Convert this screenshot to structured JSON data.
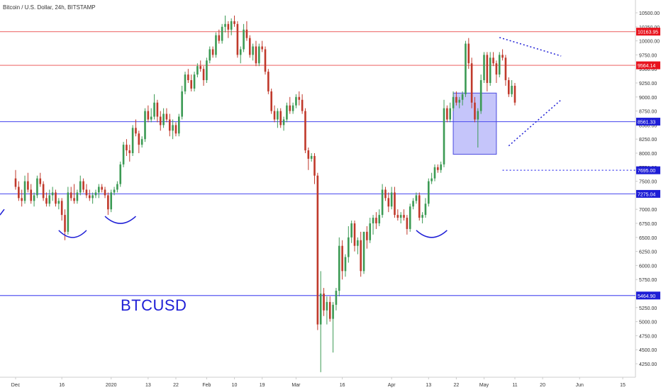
{
  "title": "Bitcoin / U.S. Dollar, 24h, BITSTAMP",
  "label": "BTCUSD",
  "colors": {
    "up": "#3c9a54",
    "down": "#c0392b",
    "red_line": "#f08080",
    "blue_line": "#5a5af0",
    "axis_text": "#333333",
    "axis_line": "#cccccc",
    "badge_red": "#e8141e",
    "badge_blue": "#1e1ed6"
  },
  "chart_data": {
    "type": "candlestick",
    "ylim": [
      4100,
      10650
    ],
    "y_ticks": [
      4250,
      4500,
      4750,
      5000,
      5250,
      5500,
      5750,
      6000,
      6250,
      6500,
      6750,
      7000,
      7250,
      7500,
      7750,
      8000,
      8250,
      8500,
      8750,
      9000,
      9250,
      9500,
      9750,
      10000,
      10250,
      10500
    ],
    "y_tick_labels": [
      "4250.00",
      "4500.00",
      "4750.00",
      "5000.00",
      "5250.00",
      "5500.00",
      "5750.00",
      "6000.00",
      "6250.00",
      "6500.00",
      "6750.00",
      "7000.00",
      "7250.00",
      "7500.00",
      "7750.00",
      "8000.00",
      "8250.00",
      "8500.00",
      "8750.00",
      "9000.00",
      "9250.00",
      "9500.00",
      "9750.00",
      "10000.00",
      "10250.00",
      "10500.00"
    ],
    "x_tick_labels": [
      {
        "label": "Dec",
        "day": 0
      },
      {
        "label": "16",
        "day": 15
      },
      {
        "label": "2020",
        "day": 31
      },
      {
        "label": "13",
        "day": 43
      },
      {
        "label": "22",
        "day": 52
      },
      {
        "label": "Feb",
        "day": 62
      },
      {
        "label": "10",
        "day": 71
      },
      {
        "label": "19",
        "day": 80
      },
      {
        "label": "Mar",
        "day": 91
      },
      {
        "label": "16",
        "day": 106
      },
      {
        "label": "Apr",
        "day": 122
      },
      {
        "label": "13",
        "day": 134
      },
      {
        "label": "22",
        "day": 143
      },
      {
        "label": "May",
        "day": 152
      },
      {
        "label": "11",
        "day": 162
      },
      {
        "label": "20",
        "day": 171
      },
      {
        "label": "Jun",
        "day": 183
      },
      {
        "label": "15",
        "day": 197
      }
    ],
    "horizontal_levels": [
      {
        "value": 10163.95,
        "label": "10163.95",
        "style": "red"
      },
      {
        "value": 9564.14,
        "label": "9564.14",
        "style": "red"
      },
      {
        "value": 8561.33,
        "label": "8561.33",
        "style": "blue"
      },
      {
        "value": 7275.04,
        "label": "7275.04",
        "style": "blue"
      },
      {
        "value": 5464.9,
        "label": "5464.90",
        "style": "blue"
      }
    ],
    "dotted_level": {
      "value": 7695.0,
      "label": "7695.00",
      "start_day": 158
    },
    "box": {
      "day_start": 142,
      "day_end": 156,
      "high": 9070,
      "low": 7980
    },
    "triangle": {
      "upper": [
        {
          "day": 157,
          "price": 10060
        },
        {
          "day": 177,
          "price": 9730
        }
      ],
      "lower": [
        {
          "day": 160,
          "price": 8130
        },
        {
          "day": 177,
          "price": 8950
        }
      ]
    },
    "arcs": [
      {
        "day_start": 14,
        "day_end": 23,
        "price": 6550
      },
      {
        "day_start": 29,
        "day_end": 39,
        "price": 6800
      },
      {
        "day_start": 130,
        "day_end": 140,
        "price": 6550
      }
    ],
    "candles": [
      [
        7550,
        7700,
        7350,
        7400
      ],
      [
        7400,
        7500,
        7150,
        7200
      ],
      [
        7200,
        7350,
        7050,
        7150
      ],
      [
        7150,
        7600,
        7100,
        7500
      ],
      [
        7500,
        7650,
        7300,
        7350
      ],
      [
        7350,
        7450,
        7100,
        7150
      ],
      [
        7150,
        7300,
        7050,
        7250
      ],
      [
        7250,
        7600,
        7200,
        7550
      ],
      [
        7550,
        7650,
        7400,
        7450
      ],
      [
        7450,
        7500,
        7150,
        7200
      ],
      [
        7200,
        7300,
        7050,
        7100
      ],
      [
        7100,
        7350,
        7050,
        7250
      ],
      [
        7250,
        7400,
        7150,
        7300
      ],
      [
        7300,
        7350,
        7050,
        7100
      ],
      [
        7100,
        7200,
        7000,
        7150
      ],
      [
        7150,
        7200,
        6800,
        6900
      ],
      [
        6900,
        7000,
        6450,
        6600
      ],
      [
        6600,
        7400,
        6550,
        7300
      ],
      [
        7300,
        7400,
        7150,
        7200
      ],
      [
        7200,
        7450,
        7100,
        7150
      ],
      [
        7150,
        7350,
        7100,
        7300
      ],
      [
        7300,
        7600,
        7250,
        7500
      ],
      [
        7500,
        7550,
        7300,
        7350
      ],
      [
        7350,
        7450,
        7200,
        7250
      ],
      [
        7250,
        7350,
        7150,
        7200
      ],
      [
        7200,
        7300,
        7100,
        7250
      ],
      [
        7250,
        7350,
        7200,
        7300
      ],
      [
        7300,
        7450,
        7200,
        7400
      ],
      [
        7400,
        7450,
        7300,
        7350
      ],
      [
        7350,
        7400,
        7200,
        7250
      ],
      [
        7250,
        7300,
        6900,
        7000
      ],
      [
        7000,
        7350,
        6950,
        7300
      ],
      [
        7300,
        7400,
        7250,
        7350
      ],
      [
        7350,
        7500,
        7300,
        7450
      ],
      [
        7450,
        7850,
        7400,
        7800
      ],
      [
        7800,
        8200,
        7750,
        8150
      ],
      [
        8150,
        8250,
        7950,
        8050
      ],
      [
        8050,
        8150,
        7850,
        8000
      ],
      [
        8000,
        8500,
        7950,
        8450
      ],
      [
        8450,
        8600,
        8300,
        8350
      ],
      [
        8350,
        8400,
        8000,
        8150
      ],
      [
        8150,
        8300,
        8100,
        8250
      ],
      [
        8250,
        8800,
        8200,
        8750
      ],
      [
        8750,
        8850,
        8550,
        8600
      ],
      [
        8600,
        8800,
        8550,
        8650
      ],
      [
        8650,
        9050,
        8600,
        8900
      ],
      [
        8900,
        8950,
        8550,
        8650
      ],
      [
        8650,
        8750,
        8400,
        8500
      ],
      [
        8500,
        8800,
        8450,
        8700
      ],
      [
        8700,
        8800,
        8550,
        8600
      ],
      [
        8600,
        8700,
        8300,
        8400
      ],
      [
        8400,
        8600,
        8250,
        8500
      ],
      [
        8500,
        8550,
        8300,
        8350
      ],
      [
        8350,
        8700,
        8300,
        8650
      ],
      [
        8650,
        9200,
        8600,
        9100
      ],
      [
        9100,
        9450,
        9050,
        9400
      ],
      [
        9400,
        9500,
        9250,
        9300
      ],
      [
        9300,
        9400,
        9100,
        9150
      ],
      [
        9150,
        9450,
        9100,
        9400
      ],
      [
        9400,
        9600,
        9350,
        9550
      ],
      [
        9550,
        9650,
        9450,
        9500
      ],
      [
        9500,
        9550,
        9200,
        9300
      ],
      [
        9300,
        9700,
        9250,
        9650
      ],
      [
        9650,
        9900,
        9600,
        9850
      ],
      [
        9850,
        9900,
        9700,
        9750
      ],
      [
        9750,
        10150,
        9700,
        10100
      ],
      [
        10100,
        10200,
        9950,
        10000
      ],
      [
        10000,
        10300,
        9950,
        10250
      ],
      [
        10250,
        10450,
        10150,
        10300
      ],
      [
        10300,
        10350,
        10050,
        10200
      ],
      [
        10200,
        10400,
        10100,
        10350
      ],
      [
        10350,
        10450,
        10250,
        10300
      ],
      [
        10300,
        10350,
        9700,
        9750
      ],
      [
        9750,
        9900,
        9600,
        9850
      ],
      [
        9850,
        10300,
        9800,
        10200
      ],
      [
        10200,
        10350,
        10000,
        10050
      ],
      [
        10050,
        10100,
        9700,
        9750
      ],
      [
        9750,
        9950,
        9650,
        9900
      ],
      [
        9900,
        10000,
        9550,
        9600
      ],
      [
        9600,
        9950,
        9550,
        9900
      ],
      [
        9900,
        10000,
        9800,
        9850
      ],
      [
        9850,
        9900,
        9400,
        9450
      ],
      [
        9450,
        9500,
        9050,
        9100
      ],
      [
        9100,
        9150,
        8700,
        8750
      ],
      [
        8750,
        8850,
        8550,
        8600
      ],
      [
        8600,
        8800,
        8450,
        8750
      ],
      [
        8750,
        8800,
        8450,
        8500
      ],
      [
        8500,
        8650,
        8400,
        8600
      ],
      [
        8600,
        8900,
        8550,
        8850
      ],
      [
        8850,
        9000,
        8700,
        8750
      ],
      [
        8750,
        8900,
        8700,
        8850
      ],
      [
        8850,
        9050,
        8800,
        9000
      ],
      [
        9000,
        9100,
        8850,
        8950
      ],
      [
        8950,
        9050,
        8700,
        8750
      ],
      [
        8750,
        8800,
        8000,
        8050
      ],
      [
        8050,
        8100,
        7700,
        7900
      ],
      [
        7900,
        8000,
        7850,
        7950
      ],
      [
        7950,
        8000,
        7450,
        7600
      ],
      [
        7600,
        7650,
        4850,
        4950
      ],
      [
        4950,
        5900,
        4100,
        5500
      ],
      [
        5500,
        5600,
        5100,
        5200
      ],
      [
        5200,
        5450,
        4950,
        5350
      ],
      [
        5350,
        5450,
        5000,
        5050
      ],
      [
        5050,
        5350,
        4450,
        5300
      ],
      [
        5300,
        5600,
        5200,
        5550
      ],
      [
        5550,
        6500,
        5450,
        6350
      ],
      [
        6350,
        6450,
        5750,
        5900
      ],
      [
        5900,
        6200,
        5800,
        6150
      ],
      [
        6150,
        6700,
        6050,
        6500
      ],
      [
        6500,
        6800,
        6400,
        6750
      ],
      [
        6750,
        6800,
        6250,
        6350
      ],
      [
        6350,
        6500,
        6200,
        6450
      ],
      [
        6450,
        6600,
        5800,
        5900
      ],
      [
        5900,
        6600,
        5850,
        6600
      ],
      [
        6600,
        6700,
        6300,
        6450
      ],
      [
        6450,
        6850,
        6400,
        6750
      ],
      [
        6750,
        6900,
        6550,
        6850
      ],
      [
        6850,
        6950,
        6650,
        6750
      ],
      [
        6750,
        7000,
        6700,
        6900
      ],
      [
        6900,
        7450,
        6850,
        7350
      ],
      [
        7350,
        7400,
        7150,
        7200
      ],
      [
        7200,
        7300,
        6950,
        7050
      ],
      [
        7050,
        7400,
        7000,
        7300
      ],
      [
        7300,
        7400,
        6850,
        6900
      ],
      [
        6900,
        7000,
        6800,
        6850
      ],
      [
        6850,
        6950,
        6750,
        6900
      ],
      [
        6900,
        7000,
        6800,
        6850
      ],
      [
        6850,
        6900,
        6550,
        6650
      ],
      [
        6650,
        7100,
        6600,
        7050
      ],
      [
        7050,
        7200,
        7000,
        7150
      ],
      [
        7150,
        7300,
        7100,
        7250
      ],
      [
        7250,
        7300,
        6800,
        6850
      ],
      [
        6850,
        6950,
        6750,
        6900
      ],
      [
        6900,
        7200,
        6850,
        7100
      ],
      [
        7100,
        7550,
        7050,
        7500
      ],
      [
        7500,
        7650,
        7450,
        7550
      ],
      [
        7550,
        7800,
        7500,
        7750
      ],
      [
        7750,
        7800,
        7650,
        7700
      ],
      [
        7700,
        7850,
        7650,
        7800
      ],
      [
        7800,
        8950,
        7750,
        8800
      ],
      [
        8800,
        8850,
        8550,
        8600
      ],
      [
        8600,
        8900,
        8550,
        8800
      ],
      [
        8800,
        9100,
        8750,
        9000
      ],
      [
        9000,
        9100,
        8850,
        8900
      ],
      [
        8900,
        9000,
        8800,
        8950
      ],
      [
        8950,
        9100,
        8850,
        9050
      ],
      [
        9050,
        10000,
        9000,
        9950
      ],
      [
        9950,
        10050,
        9500,
        9600
      ],
      [
        9600,
        9700,
        8800,
        8900
      ],
      [
        8900,
        9000,
        8550,
        8600
      ],
      [
        8600,
        8800,
        8100,
        8750
      ],
      [
        8750,
        9400,
        8700,
        9300
      ],
      [
        9300,
        9800,
        9250,
        9750
      ],
      [
        9750,
        9800,
        9100,
        9250
      ],
      [
        9250,
        9800,
        9200,
        9700
      ],
      [
        9700,
        9800,
        9550,
        9600
      ],
      [
        9600,
        9650,
        9250,
        9400
      ],
      [
        9400,
        9800,
        9350,
        9750
      ],
      [
        9750,
        9850,
        9650,
        9700
      ],
      [
        9700,
        9750,
        9200,
        9300
      ],
      [
        9300,
        9350,
        9000,
        9050
      ],
      [
        9050,
        9300,
        9000,
        9200
      ],
      [
        9200,
        9250,
        8850,
        8900
      ]
    ]
  }
}
